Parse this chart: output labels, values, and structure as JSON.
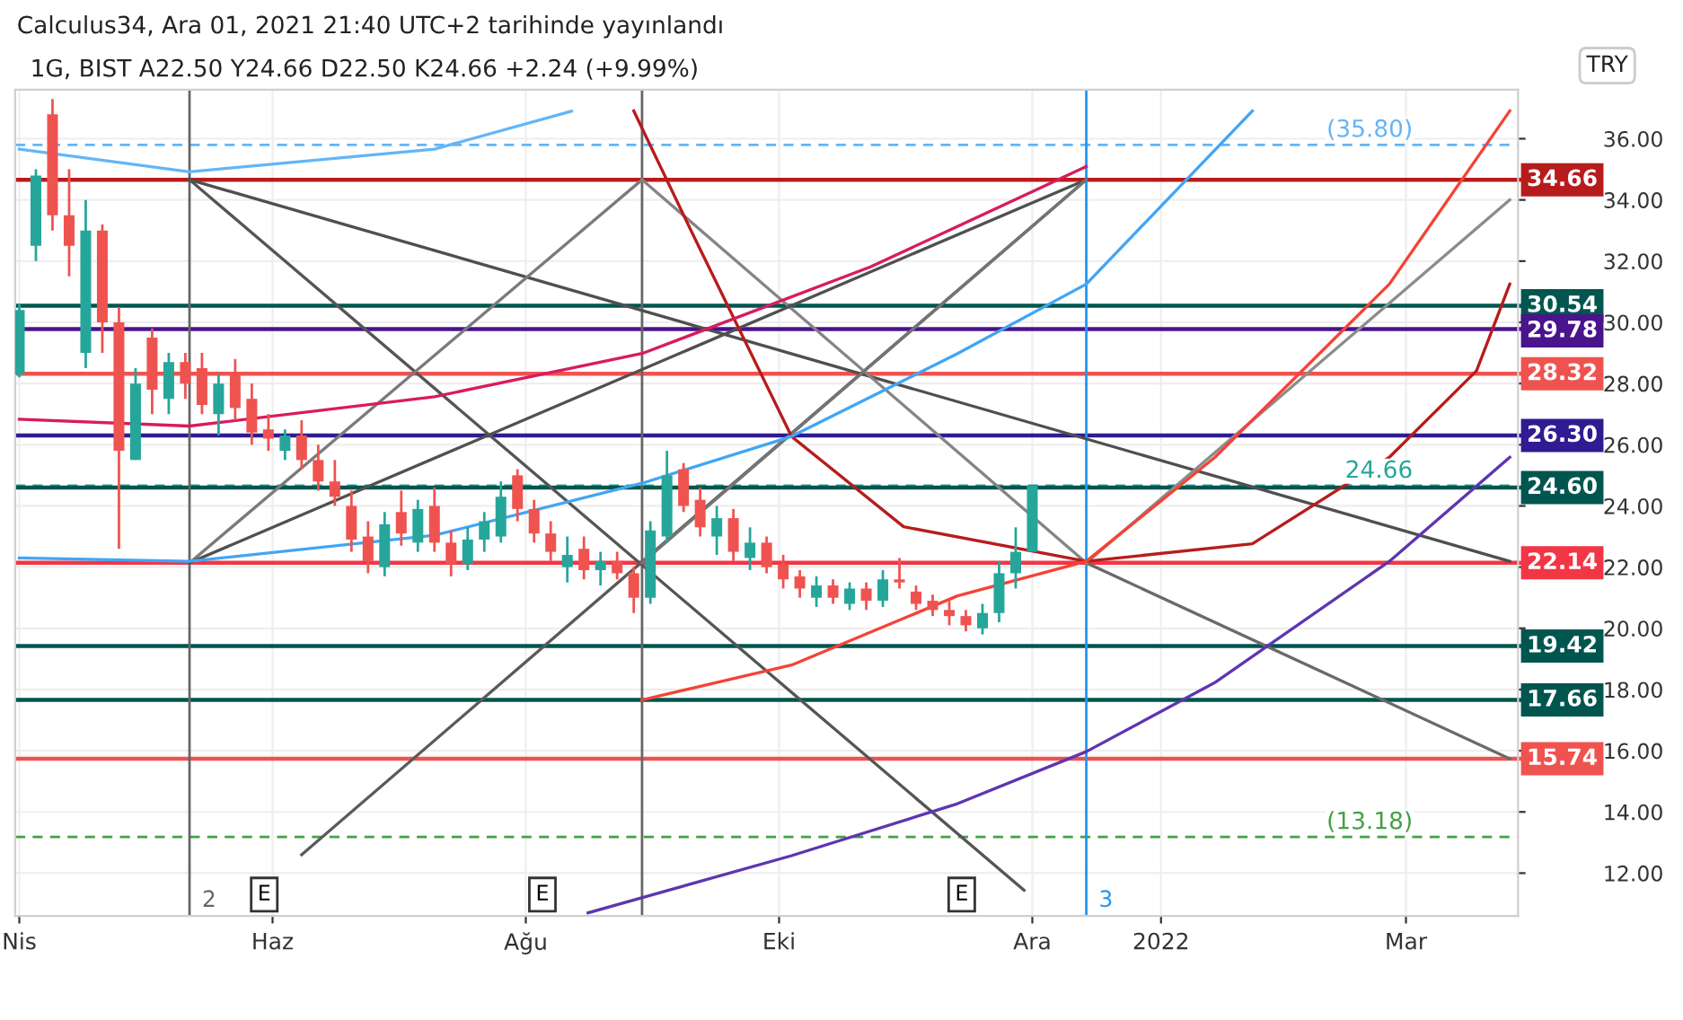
{
  "chart_data": {
    "type": "candlestick",
    "title": "1G, BIST A22.50 Y24.66 D22.50 K24.66 +2.24 (+9.99%)",
    "annotations": [
      "Calculus34, Ara 01, 2021 21:40 UTC+2 tarihinde yayınlandı",
      {
        "text": "E",
        "x": "2021-05-30",
        "y": 11.3
      },
      {
        "text": "E",
        "x": "2021-08-05",
        "y": 11.3
      },
      {
        "text": "E",
        "x": "2021-11-14",
        "y": 11.3
      },
      "TRY"
    ],
    "x": [
      "2021-04-01",
      "2021-04-05",
      "2021-04-09",
      "2021-04-13",
      "2021-04-17",
      "2021-04-21",
      "2021-04-25",
      "2021-04-29",
      "2021-05-03",
      "2021-05-07",
      "2021-05-11",
      "2021-05-15",
      "2021-05-19",
      "2021-05-23",
      "2021-05-27",
      "2021-05-31",
      "2021-06-04",
      "2021-06-08",
      "2021-06-12",
      "2021-06-16",
      "2021-06-20",
      "2021-06-24",
      "2021-06-28",
      "2021-07-02",
      "2021-07-06",
      "2021-07-10",
      "2021-07-14",
      "2021-07-18",
      "2021-07-22",
      "2021-07-26",
      "2021-07-30",
      "2021-08-03",
      "2021-08-07",
      "2021-08-11",
      "2021-08-15",
      "2021-08-19",
      "2021-08-23",
      "2021-08-27",
      "2021-08-31",
      "2021-09-04",
      "2021-09-08",
      "2021-09-12",
      "2021-09-16",
      "2021-09-20",
      "2021-09-24",
      "2021-09-28",
      "2021-10-02",
      "2021-10-06",
      "2021-10-10",
      "2021-10-14",
      "2021-10-18",
      "2021-10-22",
      "2021-10-26",
      "2021-10-30",
      "2021-11-03",
      "2021-11-07",
      "2021-11-11",
      "2021-11-15",
      "2021-11-19",
      "2021-11-23",
      "2021-11-27",
      "2021-12-01"
    ],
    "ohlc": [
      [
        28.3,
        30.6,
        28.2,
        30.4
      ],
      [
        32.5,
        35,
        32,
        34.8
      ],
      [
        36.8,
        37.3,
        33,
        33.5
      ],
      [
        33.5,
        35,
        31.5,
        32.5
      ],
      [
        29,
        34,
        28.5,
        33
      ],
      [
        33,
        33.2,
        29,
        30
      ],
      [
        30,
        30.5,
        22.6,
        25.8
      ],
      [
        25.5,
        28.5,
        25.5,
        28
      ],
      [
        29.5,
        29.8,
        27,
        27.8
      ],
      [
        27.5,
        29,
        27,
        28.7
      ],
      [
        28.7,
        29,
        27.5,
        28
      ],
      [
        28.5,
        29,
        27,
        27.3
      ],
      [
        27,
        28.3,
        26.3,
        28
      ],
      [
        28.3,
        28.8,
        26.8,
        27.2
      ],
      [
        27.5,
        28,
        26,
        26.4
      ],
      [
        26.5,
        27,
        25.8,
        26.2
      ],
      [
        25.8,
        26.5,
        25.5,
        26.3
      ],
      [
        26.3,
        26.8,
        25.2,
        25.5
      ],
      [
        25.5,
        26,
        24.5,
        24.8
      ],
      [
        24.8,
        25.5,
        24,
        24.3
      ],
      [
        24,
        24.5,
        22.5,
        22.9
      ],
      [
        23,
        23.5,
        21.8,
        22.2
      ],
      [
        22,
        23.8,
        21.7,
        23.4
      ],
      [
        23.8,
        24.5,
        22.7,
        23.1
      ],
      [
        22.8,
        24.2,
        22.5,
        23.9
      ],
      [
        24,
        24.6,
        22.5,
        22.8
      ],
      [
        22.8,
        23.2,
        21.7,
        22.1
      ],
      [
        22.1,
        23.3,
        21.9,
        22.9
      ],
      [
        22.9,
        23.8,
        22.5,
        23.5
      ],
      [
        23,
        24.8,
        22.8,
        24.3
      ],
      [
        25,
        25.2,
        23.5,
        23.9
      ],
      [
        23.9,
        24.2,
        22.8,
        23.1
      ],
      [
        23.1,
        23.5,
        22.2,
        22.5
      ],
      [
        22,
        23,
        21.5,
        22.4
      ],
      [
        22.6,
        23,
        21.6,
        21.9
      ],
      [
        21.9,
        22.5,
        21.4,
        22.2
      ],
      [
        22.2,
        22.5,
        21.6,
        21.8
      ],
      [
        21.8,
        22,
        20.5,
        21
      ],
      [
        21,
        23.5,
        20.8,
        23.2
      ],
      [
        23,
        25.8,
        22.8,
        25
      ],
      [
        25.2,
        25.4,
        23.8,
        24
      ],
      [
        24.2,
        24.6,
        23,
        23.3
      ],
      [
        23,
        24,
        22.4,
        23.6
      ],
      [
        23.6,
        23.9,
        22.2,
        22.5
      ],
      [
        22.3,
        23.3,
        21.9,
        22.8
      ],
      [
        22.8,
        23,
        21.8,
        22
      ],
      [
        22.1,
        22.4,
        21.3,
        21.6
      ],
      [
        21.7,
        21.9,
        21,
        21.3
      ],
      [
        21,
        21.7,
        20.7,
        21.4
      ],
      [
        21.4,
        21.6,
        20.8,
        21
      ],
      [
        20.8,
        21.5,
        20.6,
        21.3
      ],
      [
        21.3,
        21.5,
        20.6,
        20.9
      ],
      [
        20.9,
        21.9,
        20.7,
        21.6
      ],
      [
        21.6,
        22.3,
        21.3,
        21.5
      ],
      [
        21.2,
        21.4,
        20.6,
        20.8
      ],
      [
        20.9,
        21.1,
        20.4,
        20.6
      ],
      [
        20.6,
        20.9,
        20.1,
        20.4
      ],
      [
        20.4,
        20.6,
        19.9,
        20.1
      ],
      [
        20,
        20.8,
        19.8,
        20.5
      ],
      [
        20.5,
        22.2,
        20.2,
        21.8
      ],
      [
        21.8,
        23.3,
        21.3,
        22.5
      ],
      [
        22.5,
        24.66,
        22.5,
        24.66
      ]
    ],
    "series": [
      {
        "type": "line",
        "color": "#555555",
        "x": [
          "2021-05-12",
          "2021-11-29"
        ],
        "values": [
          34.66,
          11.44
        ]
      },
      {
        "type": "line",
        "color": "#4f4f4f",
        "x": [
          "2021-05-12",
          "2022-03-26"
        ],
        "values": [
          34.66,
          22.19
        ]
      },
      {
        "type": "line",
        "color": "#5a5a5a",
        "x": [
          "2021-06-08",
          "2021-12-14"
        ],
        "values": [
          12.6,
          34.66
        ]
      },
      {
        "type": "line",
        "color": "#7a7a7a",
        "x": [
          "2021-08-29",
          "2021-05-12"
        ],
        "values": [
          34.66,
          22.14
        ]
      },
      {
        "type": "line",
        "color": "#858585",
        "x": [
          "2021-08-29",
          "2021-12-14"
        ],
        "values": [
          34.66,
          22.14
        ]
      },
      {
        "type": "line",
        "color": "#505050",
        "x": [
          "2021-05-12",
          "2021-12-14"
        ],
        "values": [
          22.14,
          34.66
        ]
      },
      {
        "type": "line",
        "color": "#747474",
        "x": [
          "2021-08-29",
          "2021-12-14"
        ],
        "values": [
          22.14,
          34.66
        ]
      },
      {
        "type": "line",
        "color": "#6a6a6a",
        "x": [
          "2021-12-14",
          "2022-03-26"
        ],
        "values": [
          22.14,
          15.74
        ]
      },
      {
        "type": "line",
        "color": "#8c8c8c",
        "x": [
          "2021-12-14",
          "2022-03-26"
        ],
        "values": [
          22.14,
          34.0
        ]
      },
      {
        "type": "line",
        "color": "#b71c1c",
        "x": [
          "2021-08-27",
          "2021-09-10",
          "2021-10-04",
          "2021-10-31",
          "2021-12-14",
          "2022-01-23",
          "2022-02-25",
          "2022-03-18",
          "2022-03-26"
        ],
        "values": [
          36.91,
          32.94,
          26.27,
          23.32,
          22.19,
          22.76,
          25.59,
          28.42,
          31.25
        ]
      },
      {
        "type": "line",
        "color": "#d81b60",
        "x": [
          "2021-04-01",
          "2021-05-12",
          "2021-07-10",
          "2021-08-29",
          "2021-10-23",
          "2021-12-14"
        ],
        "values": [
          26.83,
          26.61,
          27.57,
          28.98,
          31.81,
          35.09
        ]
      },
      {
        "type": "line",
        "color": "#64b5f6",
        "x": [
          "2021-04-01",
          "2021-05-12",
          "2021-07-10",
          "2021-08-12"
        ],
        "values": [
          35.66,
          34.92,
          35.66,
          36.9
        ]
      },
      {
        "type": "line",
        "color": "#42a5f5",
        "x": [
          "2021-04-01",
          "2021-05-12",
          "2021-07-10",
          "2021-08-29",
          "2021-10-04",
          "2021-11-13",
          "2021-12-14",
          "2022-01-23"
        ],
        "values": [
          22.3,
          22.19,
          23.04,
          24.74,
          26.27,
          28.98,
          31.25,
          36.91
        ]
      },
      {
        "type": "line",
        "color": "#f44336",
        "x": [
          "2021-08-29",
          "2021-10-04",
          "2021-11-13",
          "2021-12-14",
          "2022-01-14",
          "2022-02-25",
          "2022-03-26"
        ],
        "values": [
          17.66,
          18.8,
          21.06,
          22.19,
          25.59,
          31.25,
          36.91
        ]
      },
      {
        "type": "line",
        "color": "#5e35b1",
        "x": [
          "2021-08-16",
          "2021-10-04",
          "2021-11-13",
          "2021-12-14",
          "2022-01-14",
          "2022-02-25",
          "2022-03-26"
        ],
        "values": [
          10.7,
          12.57,
          14.27,
          15.97,
          18.23,
          22.19,
          25.59
        ]
      }
    ],
    "ref_lines": [
      {
        "axis": "y",
        "value": 35.8,
        "label": "(35.80)",
        "color": "#64b5f6",
        "line_style": "dashed"
      },
      {
        "axis": "y",
        "value": 34.66,
        "label": "34.66",
        "color": "#b71c1c",
        "line_style": "solid"
      },
      {
        "axis": "y",
        "value": 30.54,
        "label": "30.54",
        "color": "#00564f",
        "line_style": "solid"
      },
      {
        "axis": "y",
        "value": 29.78,
        "label": "29.78",
        "color": "#4a148c",
        "line_style": "solid"
      },
      {
        "axis": "y",
        "value": 28.32,
        "label": "28.32",
        "color": "#ef5350",
        "line_style": "solid"
      },
      {
        "axis": "y",
        "value": 26.3,
        "label": "26.30",
        "color": "#311b92",
        "line_style": "solid"
      },
      {
        "axis": "y",
        "value": 24.66,
        "label": "24.66",
        "color": "#26a69a",
        "line_style": "dashed"
      },
      {
        "axis": "y",
        "value": 24.6,
        "label": "24.60",
        "color": "#00564f",
        "line_style": "solid"
      },
      {
        "axis": "y",
        "value": 22.14,
        "label": "22.14",
        "color": "#f23645",
        "line_style": "solid"
      },
      {
        "axis": "y",
        "value": 19.42,
        "label": "19.42",
        "color": "#00564f",
        "line_style": "solid"
      },
      {
        "axis": "y",
        "value": 17.66,
        "label": "17.66",
        "color": "#00564f",
        "line_style": "solid"
      },
      {
        "axis": "y",
        "value": 15.74,
        "label": "15.74",
        "color": "#ef5350",
        "line_style": "solid"
      },
      {
        "axis": "y",
        "value": 13.18,
        "label": "(13.18)",
        "color": "#43a047",
        "line_style": "dashed"
      },
      {
        "axis": "x",
        "value": "2021-05-12",
        "label": "2",
        "color": "#666666",
        "line_style": "solid"
      },
      {
        "axis": "x",
        "value": "2021-08-29",
        "label": null,
        "color": "#666666",
        "line_style": "solid"
      },
      {
        "axis": "x",
        "value": "2021-12-14",
        "label": "3",
        "color": "#2196f3",
        "line_style": "solid"
      }
    ],
    "xlim": [
      "2021-03-31",
      "2022-03-28"
    ],
    "xticks": [
      {
        "value": "2021-04-01",
        "label": "Nis"
      },
      {
        "value": "2021-06-01",
        "label": "Haz"
      },
      {
        "value": "2021-08-01",
        "label": "Ağu"
      },
      {
        "value": "2021-10-01",
        "label": "Eki"
      },
      {
        "value": "2021-12-01",
        "label": "Ara"
      },
      {
        "value": "2022-01-01",
        "label": "2022"
      },
      {
        "value": "2022-03-01",
        "label": "Mar"
      }
    ],
    "ylim": [
      10.6,
      37.6
    ],
    "yticks": [
      {
        "value": 12,
        "label": "12.00"
      },
      {
        "value": 14,
        "label": "14.00"
      },
      {
        "value": 16,
        "label": "16.00"
      },
      {
        "value": 18,
        "label": "18.00"
      },
      {
        "value": 20,
        "label": "20.00"
      },
      {
        "value": 22,
        "label": "22.00"
      },
      {
        "value": 24,
        "label": "24.00"
      },
      {
        "value": 26,
        "label": "26.00"
      },
      {
        "value": 28,
        "label": "28.00"
      },
      {
        "value": 30,
        "label": "30.00"
      },
      {
        "value": 32,
        "label": "32.00"
      },
      {
        "value": 34,
        "label": "34.00"
      },
      {
        "value": 36,
        "label": "36.00"
      }
    ],
    "grid": true
  }
}
